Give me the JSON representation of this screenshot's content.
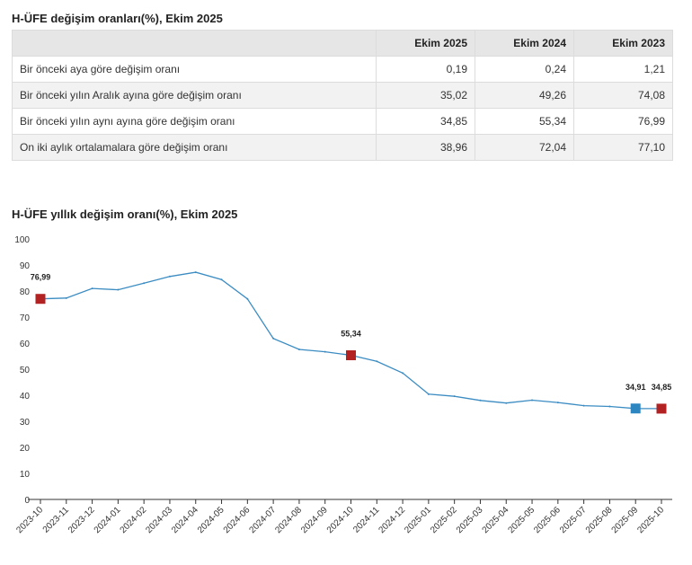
{
  "table": {
    "title": "H-ÜFE değişim oranları(%), Ekim 2025",
    "columns": [
      "",
      "Ekim 2025",
      "Ekim 2024",
      "Ekim 2023"
    ],
    "rows": [
      {
        "label": "Bir önceki aya göre değişim oranı",
        "values": [
          "0,19",
          "0,24",
          "1,21"
        ]
      },
      {
        "label": "Bir önceki yılın Aralık ayına göre değişim oranı",
        "values": [
          "35,02",
          "49,26",
          "74,08"
        ]
      },
      {
        "label": "Bir önceki yılın aynı ayına göre değişim oranı",
        "values": [
          "34,85",
          "55,34",
          "76,99"
        ]
      },
      {
        "label": "On iki aylık ortalamalara göre değişim oranı",
        "values": [
          "38,96",
          "72,04",
          "77,10"
        ]
      }
    ]
  },
  "chart_data": {
    "type": "line",
    "title": "H-ÜFE yıllık değişim oranı(%), Ekim 2025",
    "xlabel": "",
    "ylabel": "",
    "ylim": [
      0,
      100
    ],
    "yticks": [
      0,
      10,
      20,
      30,
      40,
      50,
      60,
      70,
      80,
      90,
      100
    ],
    "grid": false,
    "x": [
      "2023-10",
      "2023-11",
      "2023-12",
      "2024-01",
      "2024-02",
      "2024-03",
      "2024-04",
      "2024-05",
      "2024-06",
      "2024-07",
      "2024-08",
      "2024-09",
      "2024-10",
      "2024-11",
      "2024-12",
      "2025-01",
      "2025-02",
      "2025-03",
      "2025-04",
      "2025-05",
      "2025-06",
      "2025-07",
      "2025-08",
      "2025-09",
      "2025-10"
    ],
    "series": [
      {
        "values": [
          76.99,
          77.3,
          81.0,
          80.5,
          83.0,
          85.6,
          87.2,
          84.4,
          77.0,
          61.8,
          57.6,
          56.7,
          55.34,
          53.0,
          48.5,
          40.4,
          39.6,
          38.0,
          37.0,
          38.1,
          37.2,
          36.0,
          35.7,
          34.91,
          34.85
        ],
        "color": "#3b8cc2"
      }
    ],
    "annotations": [
      {
        "x": "2023-10",
        "value": 76.99,
        "label": "76,99",
        "color": "#b22222"
      },
      {
        "x": "2024-10",
        "value": 55.34,
        "label": "55,34",
        "color": "#b22222"
      },
      {
        "x": "2025-09",
        "value": 34.91,
        "label": "34,91",
        "color": "#2e86c1"
      },
      {
        "x": "2025-10",
        "value": 34.85,
        "label": "34,85",
        "color": "#b22222"
      }
    ]
  }
}
